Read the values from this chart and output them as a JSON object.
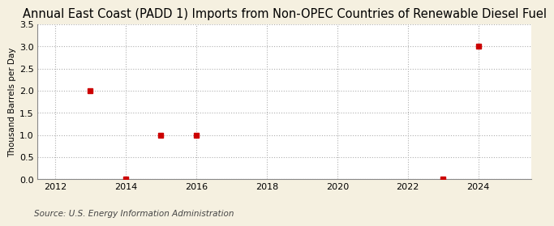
{
  "title": "Annual East Coast (PADD 1) Imports from Non-OPEC Countries of Renewable Diesel Fuel",
  "ylabel": "Thousand Barrels per Day",
  "source": "Source: U.S. Energy Information Administration",
  "x_data": [
    2013,
    2014,
    2015,
    2016,
    2023,
    2024
  ],
  "y_data": [
    2.0,
    0.0,
    1.0,
    1.0,
    0.0,
    3.0
  ],
  "xlim": [
    2011.5,
    2025.5
  ],
  "ylim": [
    0.0,
    3.5
  ],
  "xticks": [
    2012,
    2014,
    2016,
    2018,
    2020,
    2022,
    2024
  ],
  "yticks": [
    0.0,
    0.5,
    1.0,
    1.5,
    2.0,
    2.5,
    3.0,
    3.5
  ],
  "figure_bg_color": "#f5f0e0",
  "plot_bg_color": "#ffffff",
  "marker_color": "#cc0000",
  "marker_size": 4,
  "grid_color": "#b0b0b0",
  "title_fontsize": 10.5,
  "label_fontsize": 7.5,
  "tick_fontsize": 8,
  "source_fontsize": 7.5
}
